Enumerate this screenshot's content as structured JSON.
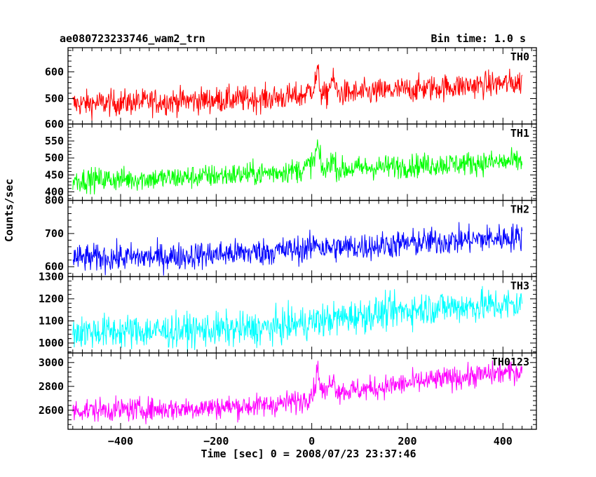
{
  "header": {
    "title": "ae080723233746_wam2_trn",
    "bin_time": "Bin time: 1.0 s"
  },
  "axes": {
    "xlabel": "Time [sec] 0 = 2008/07/23 23:37:46",
    "ylabel": "Counts/sec"
  },
  "chart_data": {
    "type": "line",
    "xlabel": "Time [sec] 0 = 2008/07/23 23:37:46",
    "ylabel": "Counts/sec",
    "xlim": [
      -510,
      470
    ],
    "data_range_x": [
      -500,
      440
    ],
    "bin_time_s": 1.0,
    "x_ticks": [
      -400,
      -200,
      0,
      200,
      400
    ],
    "grid": false,
    "panels": [
      {
        "name": "TH0",
        "color": "#ff0000",
        "ylim": [
          405,
          690
        ],
        "y_ticks": [
          500,
          600
        ],
        "trend_x": [
          -500,
          -300,
          -100,
          -20,
          5,
          12,
          20,
          30,
          42,
          55,
          100,
          250,
          440
        ],
        "trend_y": [
          480,
          490,
          500,
          510,
          545,
          600,
          520,
          505,
          575,
          520,
          520,
          540,
          560
        ],
        "noise_amplitude": 35
      },
      {
        "name": "TH1",
        "color": "#00ff00",
        "ylim": [
          375,
          600
        ],
        "y_ticks": [
          400,
          450,
          500,
          550,
          600
        ],
        "trend_x": [
          -500,
          -300,
          -100,
          -20,
          5,
          12,
          20,
          30,
          42,
          55,
          100,
          250,
          440
        ],
        "trend_y": [
          435,
          440,
          455,
          465,
          490,
          540,
          470,
          460,
          500,
          465,
          470,
          480,
          490
        ],
        "noise_amplitude": 25
      },
      {
        "name": "TH2",
        "color": "#0000ff",
        "ylim": [
          570,
          800
        ],
        "y_ticks": [
          600,
          700,
          800
        ],
        "trend_x": [
          -500,
          -300,
          -100,
          0,
          10,
          20,
          100,
          250,
          440
        ],
        "trend_y": [
          625,
          630,
          645,
          655,
          680,
          655,
          660,
          675,
          690
        ],
        "noise_amplitude": 30
      },
      {
        "name": "TH3",
        "color": "#00ffff",
        "ylim": [
          955,
          1300
        ],
        "y_ticks": [
          1000,
          1100,
          1200,
          1300
        ],
        "trend_x": [
          -500,
          -300,
          -100,
          0,
          100,
          250,
          440
        ],
        "trend_y": [
          1050,
          1055,
          1065,
          1095,
          1125,
          1160,
          1175
        ],
        "noise_amplitude": 55
      },
      {
        "name": "TH0123",
        "color": "#ff00ff",
        "ylim": [
          2440,
          3080
        ],
        "y_ticks": [
          2600,
          2800,
          3000
        ],
        "trend_x": [
          -500,
          -300,
          -100,
          -20,
          5,
          12,
          20,
          30,
          42,
          55,
          100,
          250,
          440
        ],
        "trend_y": [
          2600,
          2610,
          2640,
          2680,
          2760,
          2960,
          2770,
          2740,
          2880,
          2760,
          2770,
          2850,
          2930
        ],
        "noise_amplitude": 70
      }
    ]
  }
}
